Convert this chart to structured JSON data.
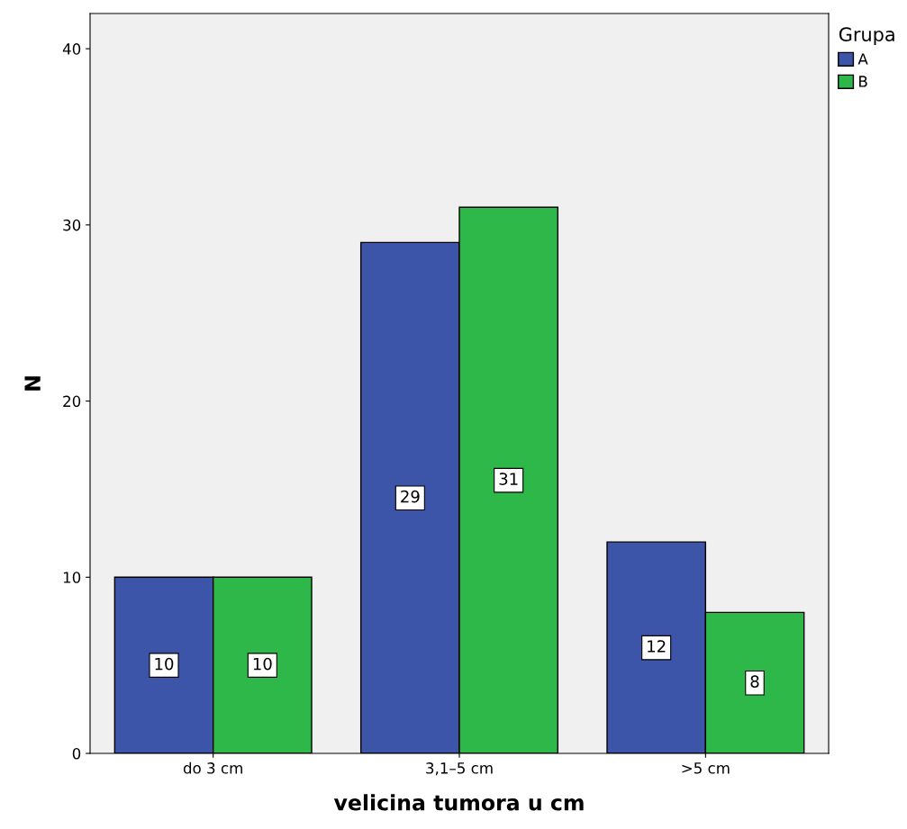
{
  "chart_data": {
    "type": "bar",
    "xlabel": "velicina tumora u cm",
    "ylabel": "N",
    "legend_title": "Grupa",
    "categories": [
      "do 3 cm",
      "3,1–5 cm",
      ">5 cm"
    ],
    "series": [
      {
        "name": "A",
        "color": "#3d55a8",
        "values": [
          10,
          29,
          12
        ]
      },
      {
        "name": "B",
        "color": "#2fb84a",
        "values": [
          10,
          31,
          8
        ]
      }
    ],
    "ylim": [
      0,
      42
    ],
    "yticks": [
      0,
      10,
      20,
      30,
      40
    ],
    "grid": false,
    "legend": "top right",
    "data_labels": true
  }
}
